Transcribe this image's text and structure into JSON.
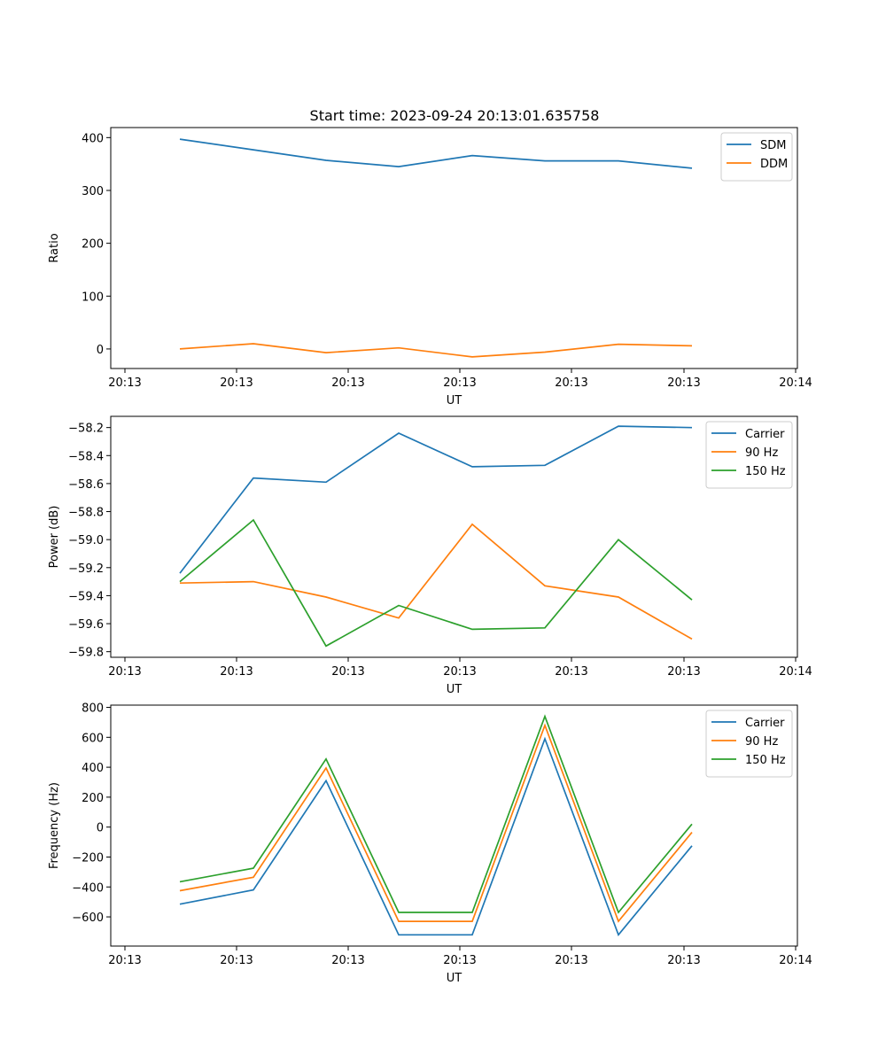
{
  "title": "Start time: 2023-09-24 20:13:01.635758",
  "colors": {
    "series1": "#1f77b4",
    "series2": "#ff7f0e",
    "series3": "#2ca02c"
  },
  "chart_data": [
    {
      "type": "line",
      "xlabel": "UT",
      "ylabel": "Ratio",
      "x_tick_labels": [
        "20:13",
        "20:13",
        "20:13",
        "20:13",
        "20:13",
        "20:13",
        "20:13",
        "20:14"
      ],
      "x_tick_positions": [
        0,
        1,
        2,
        3,
        4,
        5,
        6,
        6.05
      ],
      "xlim": [
        -0.5,
        7.0
      ],
      "ylim": [
        -37,
        419
      ],
      "y_ticks": [
        0,
        100,
        200,
        300,
        400
      ],
      "x": [
        0.5,
        1.15,
        1.8,
        2.45,
        3.1,
        3.75,
        4.4,
        5.05
      ],
      "series": [
        {
          "name": "SDM",
          "color": "#1f77b4",
          "values": [
            397,
            377,
            357,
            345,
            366,
            356,
            356,
            342
          ]
        },
        {
          "name": "DDM",
          "color": "#ff7f0e",
          "values": [
            0,
            10,
            -7,
            2,
            -15,
            -6,
            9,
            6
          ]
        }
      ],
      "legend": "top-right"
    },
    {
      "type": "line",
      "xlabel": "UT",
      "ylabel": "Power (dB)",
      "x_tick_labels": [
        "20:13",
        "20:13",
        "20:13",
        "20:13",
        "20:13",
        "20:13",
        "20:13",
        "20:14"
      ],
      "xlim": [
        -0.5,
        7.0
      ],
      "ylim": [
        -59.84,
        -58.12
      ],
      "y_ticks": [
        -59.8,
        -59.6,
        -59.4,
        -59.2,
        -59.0,
        -58.8,
        -58.6,
        -58.4,
        -58.2
      ],
      "y_tick_labels": [
        "−59.8",
        "−59.6",
        "−59.4",
        "−59.2",
        "−59.0",
        "−58.8",
        "−58.6",
        "−58.4",
        "−58.2"
      ],
      "x": [
        0.5,
        1.15,
        1.8,
        2.45,
        3.1,
        3.75,
        4.4,
        5.05
      ],
      "series": [
        {
          "name": "Carrier",
          "color": "#1f77b4",
          "values": [
            -59.24,
            -58.56,
            -58.59,
            -58.24,
            -58.48,
            -58.47,
            -58.19,
            -58.2
          ]
        },
        {
          "name": "90 Hz",
          "color": "#ff7f0e",
          "values": [
            -59.31,
            -59.3,
            -59.41,
            -59.56,
            -58.89,
            -59.33,
            -59.41,
            -59.71
          ]
        },
        {
          "name": "150 Hz",
          "color": "#2ca02c",
          "values": [
            -59.3,
            -58.86,
            -59.76,
            -59.47,
            -59.64,
            -59.63,
            -59.0,
            -59.43
          ]
        }
      ],
      "legend": "top-right"
    },
    {
      "type": "line",
      "xlabel": "UT",
      "ylabel": "Frequency (Hz)",
      "x_tick_labels": [
        "20:13",
        "20:13",
        "20:13",
        "20:13",
        "20:13",
        "20:13",
        "20:13",
        "20:14"
      ],
      "xlim": [
        -0.5,
        7.0
      ],
      "ylim": [
        -795,
        815
      ],
      "y_ticks": [
        -600,
        -400,
        -200,
        0,
        200,
        400,
        600,
        800
      ],
      "y_tick_labels": [
        "−600",
        "−400",
        "−200",
        "0",
        "200",
        "400",
        "600",
        "800"
      ],
      "x": [
        0.5,
        1.15,
        1.8,
        2.45,
        3.1,
        3.75,
        4.4,
        5.05
      ],
      "series": [
        {
          "name": "Carrier",
          "color": "#1f77b4",
          "values": [
            -515,
            -420,
            310,
            -720,
            -720,
            590,
            -720,
            -125
          ]
        },
        {
          "name": "90 Hz",
          "color": "#ff7f0e",
          "values": [
            -425,
            -335,
            395,
            -630,
            -630,
            680,
            -630,
            -35
          ]
        },
        {
          "name": "150 Hz",
          "color": "#2ca02c",
          "values": [
            -365,
            -275,
            455,
            -570,
            -570,
            740,
            -570,
            20
          ]
        }
      ],
      "legend": "top-right"
    }
  ]
}
